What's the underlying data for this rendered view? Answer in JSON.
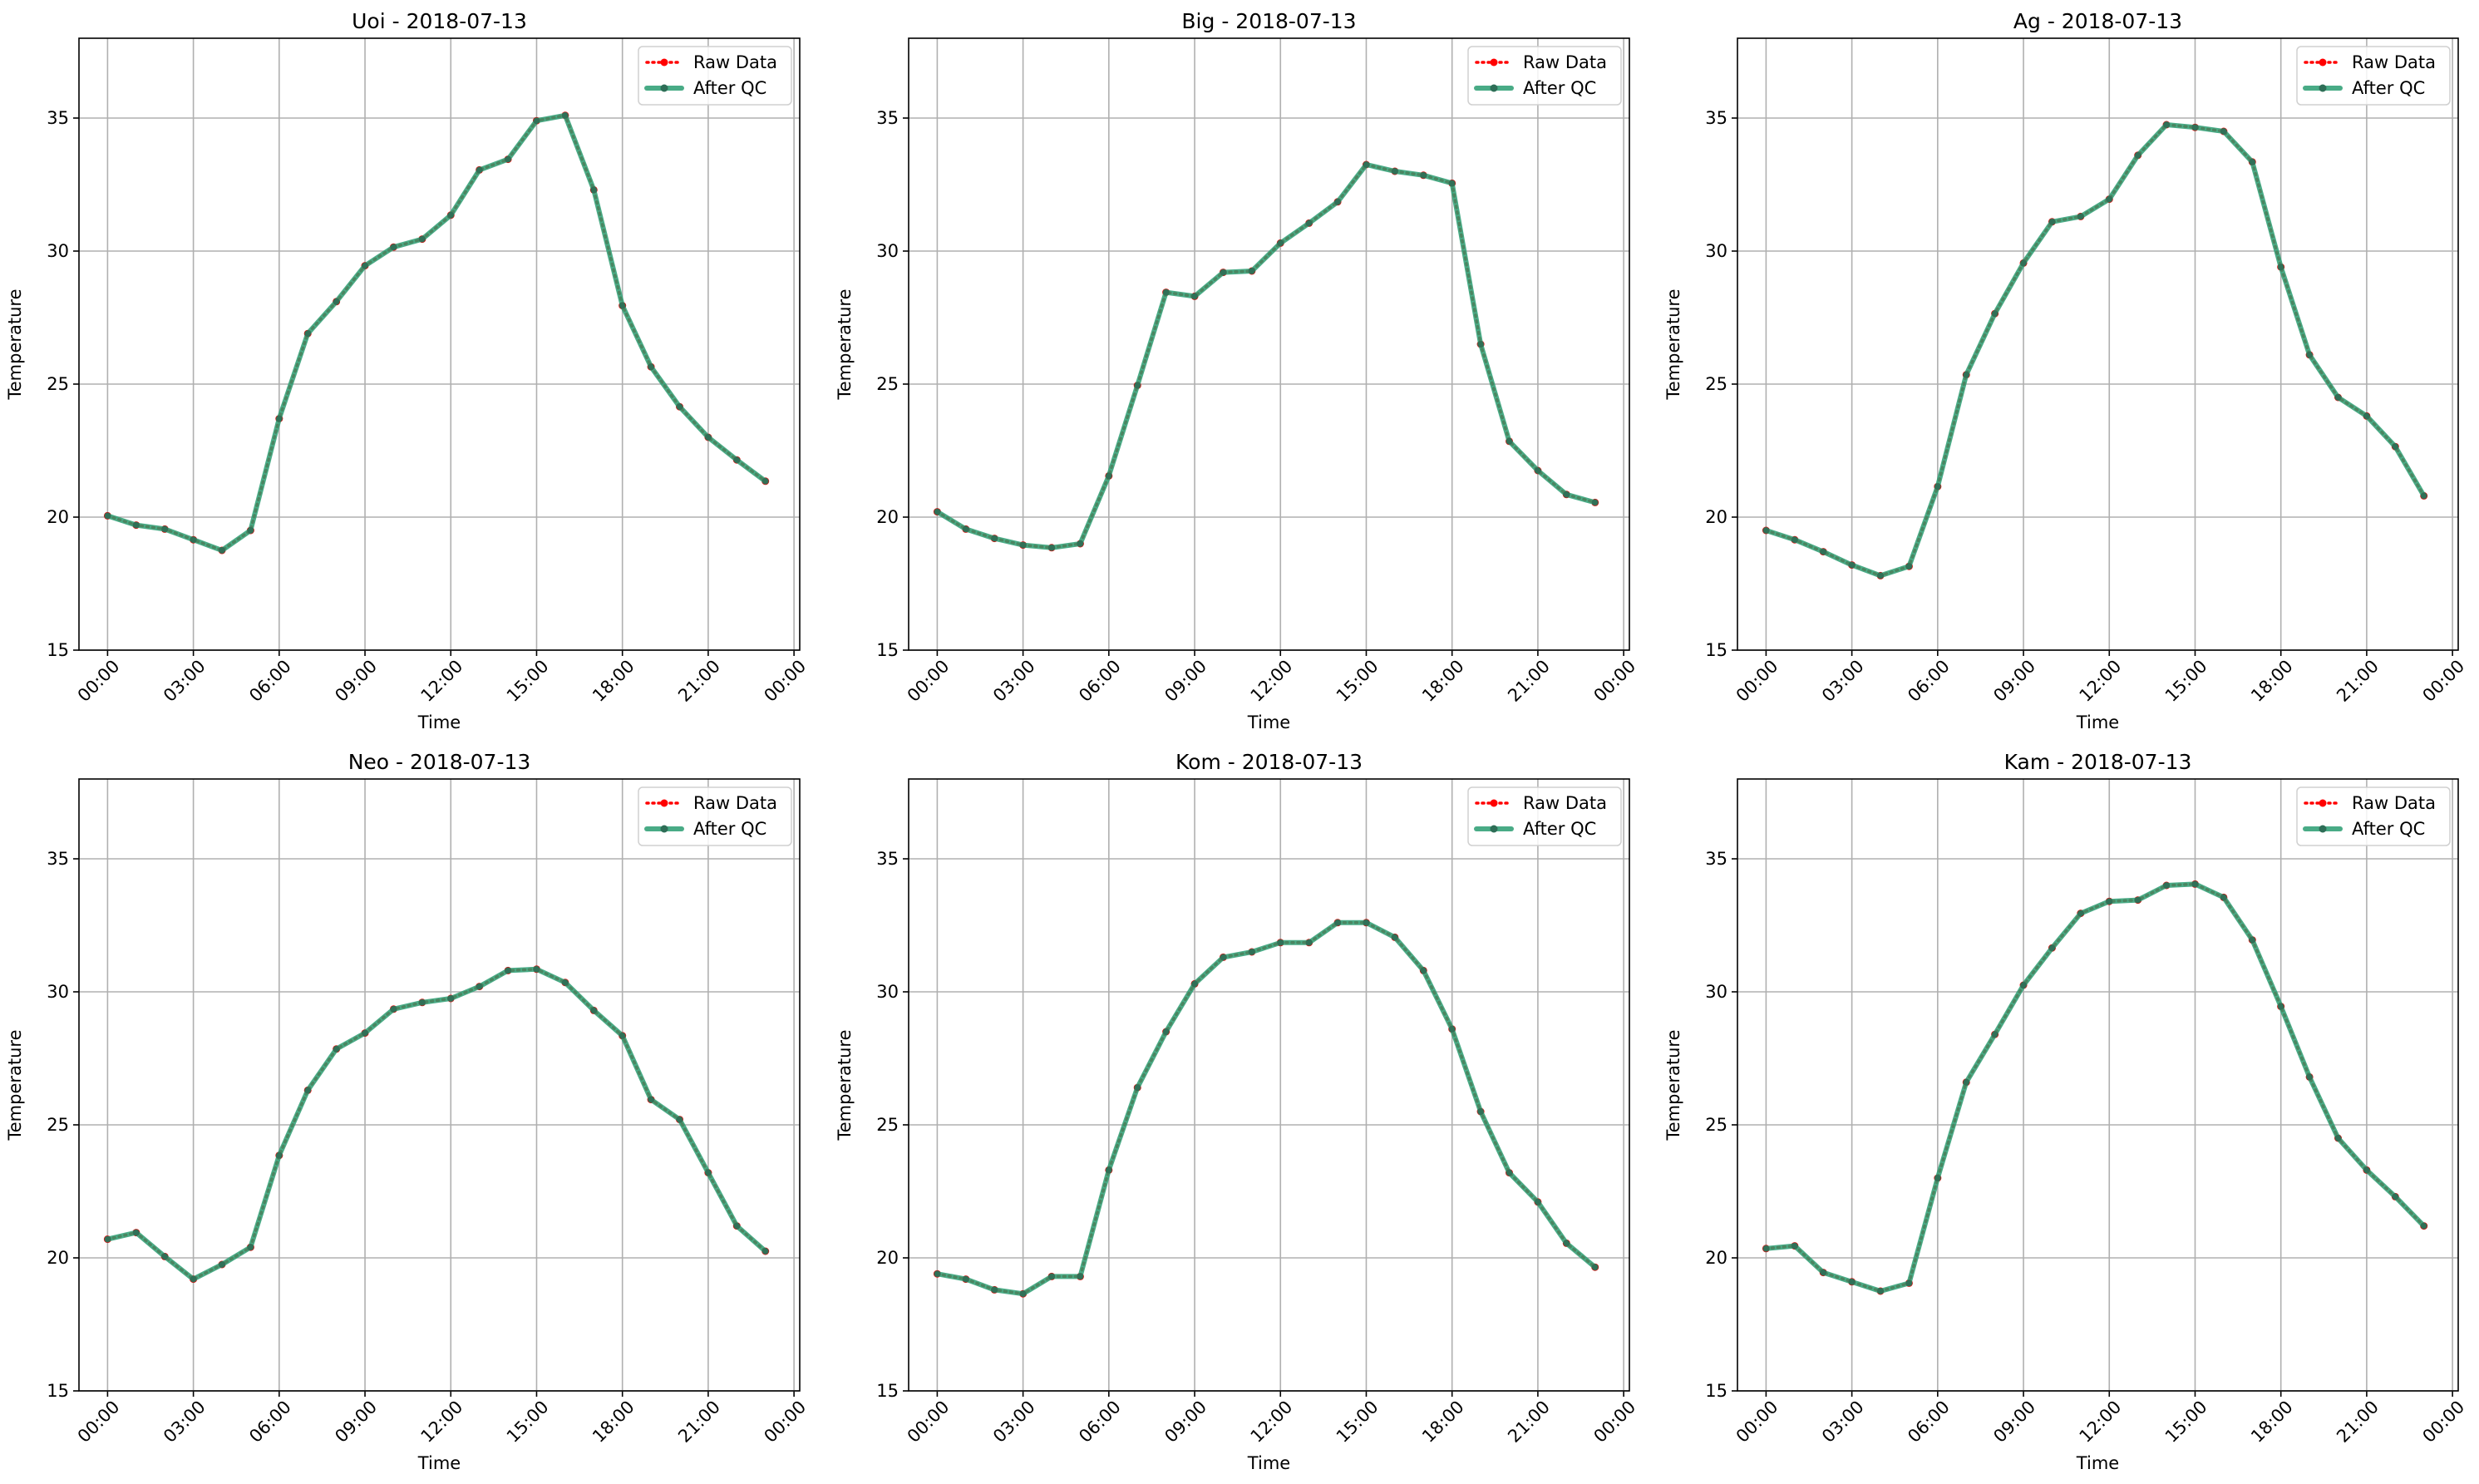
{
  "chart_data": [
    {
      "type": "line",
      "title": "Uoi - 2018-07-13",
      "xlabel": "Time",
      "ylabel": "Temperature",
      "ylim": [
        15,
        38
      ],
      "x_ticks": [
        "00:00",
        "03:00",
        "06:00",
        "09:00",
        "12:00",
        "15:00",
        "18:00",
        "21:00",
        "00:00"
      ],
      "y_ticks": [
        15,
        20,
        25,
        30,
        35
      ],
      "grid": true,
      "legend_position": "top-right",
      "x_hours": [
        0,
        1,
        2,
        3,
        4,
        5,
        6,
        7,
        8,
        9,
        10,
        11,
        12,
        13,
        14,
        15,
        16,
        17,
        18,
        19,
        20,
        21,
        22,
        23
      ],
      "series": [
        {
          "name": "Raw Data",
          "color": "#ff0000",
          "style": "dotted",
          "values": [
            20.05,
            19.7,
            19.55,
            19.15,
            18.75,
            19.5,
            23.7,
            26.9,
            28.1,
            29.45,
            30.15,
            30.45,
            31.35,
            33.05,
            33.45,
            34.9,
            35.1,
            32.3,
            27.95,
            25.65,
            24.15,
            23.0,
            22.15,
            21.35
          ]
        },
        {
          "name": "After QC",
          "color": "#2a9d72",
          "style": "solid",
          "values": [
            20.05,
            19.7,
            19.55,
            19.15,
            18.75,
            19.5,
            23.7,
            26.9,
            28.1,
            29.45,
            30.15,
            30.45,
            31.35,
            33.05,
            33.45,
            34.9,
            35.1,
            32.3,
            27.95,
            25.65,
            24.15,
            23.0,
            22.15,
            21.35
          ]
        }
      ]
    },
    {
      "type": "line",
      "title": "Big - 2018-07-13",
      "xlabel": "Time",
      "ylabel": "Temperature",
      "ylim": [
        15,
        38
      ],
      "x_ticks": [
        "00:00",
        "03:00",
        "06:00",
        "09:00",
        "12:00",
        "15:00",
        "18:00",
        "21:00",
        "00:00"
      ],
      "y_ticks": [
        15,
        20,
        25,
        30,
        35
      ],
      "grid": true,
      "legend_position": "top-right",
      "x_hours": [
        0,
        1,
        2,
        3,
        4,
        5,
        6,
        7,
        8,
        9,
        10,
        11,
        12,
        13,
        14,
        15,
        16,
        17,
        18,
        19,
        20,
        21,
        22,
        23
      ],
      "series": [
        {
          "name": "Raw Data",
          "color": "#ff0000",
          "style": "dotted",
          "values": [
            20.2,
            19.55,
            19.2,
            18.95,
            18.85,
            19.0,
            21.55,
            24.95,
            28.45,
            28.3,
            29.2,
            29.25,
            30.3,
            31.05,
            31.85,
            33.25,
            33.0,
            32.85,
            32.55,
            26.5,
            22.85,
            21.75,
            20.85,
            20.55
          ]
        },
        {
          "name": "After QC",
          "color": "#2a9d72",
          "style": "solid",
          "values": [
            20.2,
            19.55,
            19.2,
            18.95,
            18.85,
            19.0,
            21.55,
            24.95,
            28.45,
            28.3,
            29.2,
            29.25,
            30.3,
            31.05,
            31.85,
            33.25,
            33.0,
            32.85,
            32.55,
            26.5,
            22.85,
            21.75,
            20.85,
            20.55
          ]
        }
      ]
    },
    {
      "type": "line",
      "title": "Ag - 2018-07-13",
      "xlabel": "Time",
      "ylabel": "Temperature",
      "ylim": [
        15,
        38
      ],
      "x_ticks": [
        "00:00",
        "03:00",
        "06:00",
        "09:00",
        "12:00",
        "15:00",
        "18:00",
        "21:00",
        "00:00"
      ],
      "y_ticks": [
        15,
        20,
        25,
        30,
        35
      ],
      "grid": true,
      "legend_position": "top-right",
      "x_hours": [
        0,
        1,
        2,
        3,
        4,
        5,
        6,
        7,
        8,
        9,
        10,
        11,
        12,
        13,
        14,
        15,
        16,
        17,
        18,
        19,
        20,
        21,
        22,
        23
      ],
      "series": [
        {
          "name": "Raw Data",
          "color": "#ff0000",
          "style": "dotted",
          "values": [
            19.5,
            19.15,
            18.7,
            18.2,
            17.8,
            18.15,
            21.15,
            25.35,
            27.65,
            29.55,
            31.1,
            31.3,
            31.95,
            33.6,
            34.75,
            34.65,
            34.5,
            33.35,
            29.4,
            26.1,
            24.5,
            23.8,
            22.65,
            20.8
          ]
        },
        {
          "name": "After QC",
          "color": "#2a9d72",
          "style": "solid",
          "values": [
            19.5,
            19.15,
            18.7,
            18.2,
            17.8,
            18.15,
            21.15,
            25.35,
            27.65,
            29.55,
            31.1,
            31.3,
            31.95,
            33.6,
            34.75,
            34.65,
            34.5,
            33.35,
            29.4,
            26.1,
            24.5,
            23.8,
            22.65,
            20.8
          ]
        }
      ]
    },
    {
      "type": "line",
      "title": "Neo - 2018-07-13",
      "xlabel": "Time",
      "ylabel": "Temperature",
      "ylim": [
        15,
        38
      ],
      "x_ticks": [
        "00:00",
        "03:00",
        "06:00",
        "09:00",
        "12:00",
        "15:00",
        "18:00",
        "21:00",
        "00:00"
      ],
      "y_ticks": [
        15,
        20,
        25,
        30,
        35
      ],
      "grid": true,
      "legend_position": "top-right",
      "x_hours": [
        0,
        1,
        2,
        3,
        4,
        5,
        6,
        7,
        8,
        9,
        10,
        11,
        12,
        13,
        14,
        15,
        16,
        17,
        18,
        19,
        20,
        21,
        22,
        23
      ],
      "series": [
        {
          "name": "Raw Data",
          "color": "#ff0000",
          "style": "dotted",
          "values": [
            20.7,
            20.95,
            20.05,
            19.2,
            19.75,
            20.4,
            23.85,
            26.3,
            27.85,
            28.45,
            29.35,
            29.6,
            29.75,
            30.2,
            30.8,
            30.85,
            30.35,
            29.3,
            28.35,
            25.95,
            25.2,
            23.2,
            21.2,
            20.25
          ]
        },
        {
          "name": "After QC",
          "color": "#2a9d72",
          "style": "solid",
          "values": [
            20.7,
            20.95,
            20.05,
            19.2,
            19.75,
            20.4,
            23.85,
            26.3,
            27.85,
            28.45,
            29.35,
            29.6,
            29.75,
            30.2,
            30.8,
            30.85,
            30.35,
            29.3,
            28.35,
            25.95,
            25.2,
            23.2,
            21.2,
            20.25
          ]
        }
      ]
    },
    {
      "type": "line",
      "title": "Kom - 2018-07-13",
      "xlabel": "Time",
      "ylabel": "Temperature",
      "ylim": [
        15,
        38
      ],
      "x_ticks": [
        "00:00",
        "03:00",
        "06:00",
        "09:00",
        "12:00",
        "15:00",
        "18:00",
        "21:00",
        "00:00"
      ],
      "y_ticks": [
        15,
        20,
        25,
        30,
        35
      ],
      "grid": true,
      "legend_position": "top-right",
      "x_hours": [
        0,
        1,
        2,
        3,
        4,
        5,
        6,
        7,
        8,
        9,
        10,
        11,
        12,
        13,
        14,
        15,
        16,
        17,
        18,
        19,
        20,
        21,
        22,
        23
      ],
      "series": [
        {
          "name": "Raw Data",
          "color": "#ff0000",
          "style": "dotted",
          "values": [
            19.4,
            19.2,
            18.8,
            18.65,
            19.3,
            19.3,
            23.3,
            26.4,
            28.5,
            30.3,
            31.3,
            31.5,
            31.85,
            31.85,
            32.6,
            32.6,
            32.05,
            30.8,
            28.6,
            25.5,
            23.2,
            22.1,
            20.55,
            19.65
          ]
        },
        {
          "name": "After QC",
          "color": "#2a9d72",
          "style": "solid",
          "values": [
            19.4,
            19.2,
            18.8,
            18.65,
            19.3,
            19.3,
            23.3,
            26.4,
            28.5,
            30.3,
            31.3,
            31.5,
            31.85,
            31.85,
            32.6,
            32.6,
            32.05,
            30.8,
            28.6,
            25.5,
            23.2,
            22.1,
            20.55,
            19.65
          ]
        }
      ]
    },
    {
      "type": "line",
      "title": "Kam - 2018-07-13",
      "xlabel": "Time",
      "ylabel": "Temperature",
      "ylim": [
        15,
        38
      ],
      "x_ticks": [
        "00:00",
        "03:00",
        "06:00",
        "09:00",
        "12:00",
        "15:00",
        "18:00",
        "21:00",
        "00:00"
      ],
      "y_ticks": [
        15,
        20,
        25,
        30,
        35
      ],
      "grid": true,
      "legend_position": "top-right",
      "x_hours": [
        0,
        1,
        2,
        3,
        4,
        5,
        6,
        7,
        8,
        9,
        10,
        11,
        12,
        13,
        14,
        15,
        16,
        17,
        18,
        19,
        20,
        21,
        22,
        23
      ],
      "series": [
        {
          "name": "Raw Data",
          "color": "#ff0000",
          "style": "dotted",
          "values": [
            20.35,
            20.45,
            19.45,
            19.1,
            18.75,
            19.05,
            23.0,
            26.6,
            28.4,
            30.25,
            31.65,
            32.95,
            33.4,
            33.45,
            34.0,
            34.05,
            33.55,
            31.95,
            29.45,
            26.8,
            24.5,
            23.3,
            22.3,
            21.2
          ]
        },
        {
          "name": "After QC",
          "color": "#2a9d72",
          "style": "solid",
          "values": [
            20.35,
            20.45,
            19.45,
            19.1,
            18.75,
            19.05,
            23.0,
            26.6,
            28.4,
            30.25,
            31.65,
            32.95,
            33.4,
            33.45,
            34.0,
            34.05,
            33.55,
            31.95,
            29.45,
            26.8,
            24.5,
            23.3,
            22.3,
            21.2
          ]
        }
      ]
    }
  ]
}
